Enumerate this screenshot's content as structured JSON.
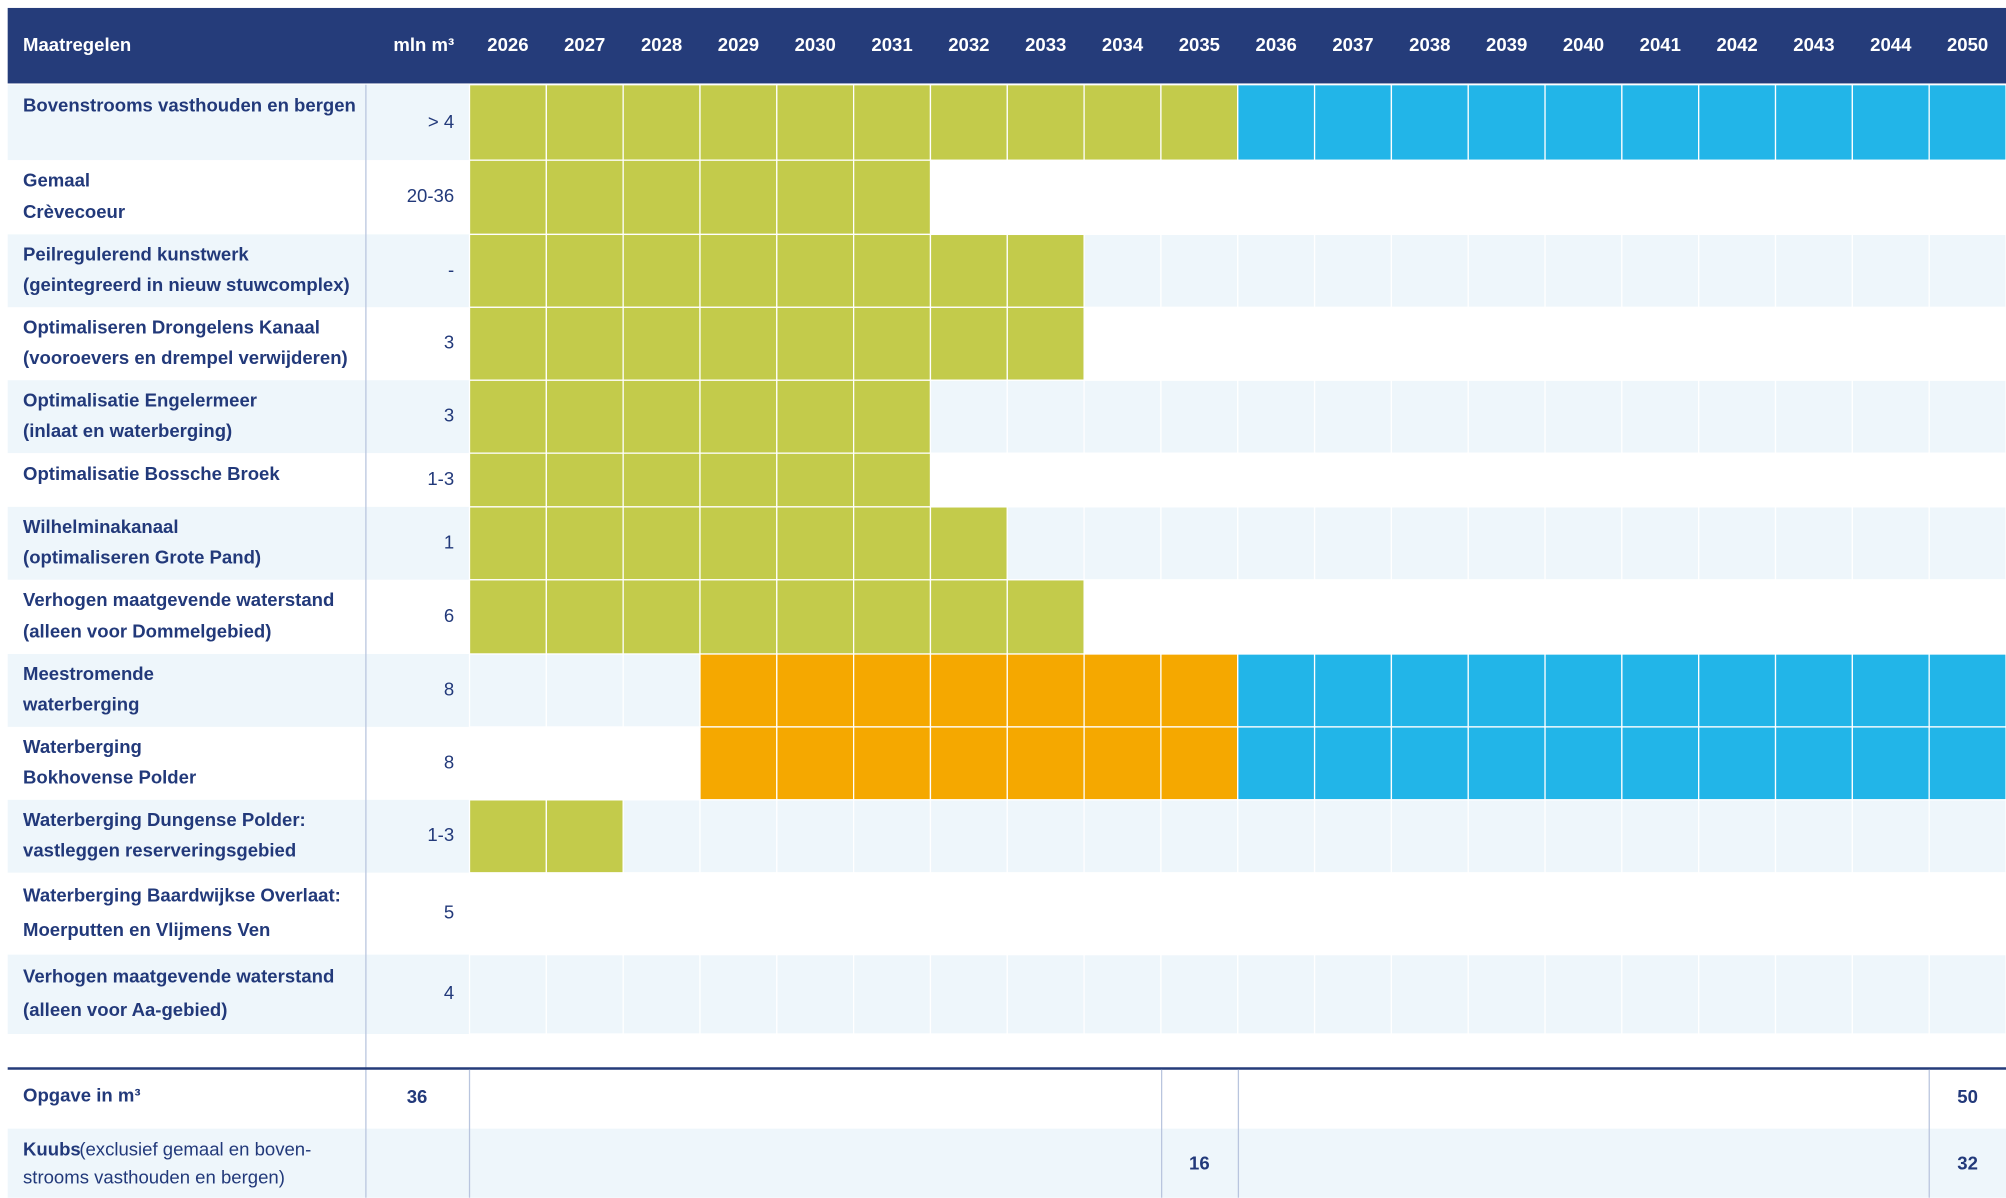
{
  "colors": {
    "green": "#c3cb4b",
    "orange": "#f5a800",
    "blue": "#22b5e8"
  },
  "header": {
    "label": "Maatregelen",
    "unit": "mln m³",
    "years": [
      "2026",
      "2027",
      "2028",
      "2029",
      "2030",
      "2031",
      "2032",
      "2033",
      "2034",
      "2035",
      "2036",
      "2037",
      "2038",
      "2039",
      "2040",
      "2041",
      "2042",
      "2043",
      "2044",
      "2050"
    ]
  },
  "rows": [
    {
      "label": [
        "Bovenstrooms vasthouden en bergen"
      ],
      "volume": "> 4",
      "cells": [
        "green",
        "green",
        "green",
        "green",
        "green",
        "green",
        "green",
        "green",
        "green",
        "green",
        "blue",
        "blue",
        "blue",
        "blue",
        "blue",
        "blue",
        "blue",
        "blue",
        "blue",
        "blue"
      ]
    },
    {
      "label": [
        "Gemaal",
        "Crèvecoeur"
      ],
      "volume": "20-36",
      "cells": [
        "green",
        "green",
        "green",
        "green",
        "green",
        "green",
        null,
        null,
        null,
        null,
        null,
        null,
        null,
        null,
        null,
        null,
        null,
        null,
        null,
        null
      ]
    },
    {
      "label": [
        "Peilregulerend kunstwerk",
        "(geintegreerd in nieuw stuwcomplex)"
      ],
      "volume": "-",
      "cells": [
        "green",
        "green",
        "green",
        "green",
        "green",
        "green",
        "green",
        "green",
        null,
        null,
        null,
        null,
        null,
        null,
        null,
        null,
        null,
        null,
        null,
        null
      ]
    },
    {
      "label": [
        "Optimaliseren Drongelens Kanaal",
        "(vooroevers en drempel verwijderen)"
      ],
      "volume": "3",
      "cells": [
        "green",
        "green",
        "green",
        "green",
        "green",
        "green",
        "green",
        "green",
        null,
        null,
        null,
        null,
        null,
        null,
        null,
        null,
        null,
        null,
        null,
        null
      ]
    },
    {
      "label": [
        "Optimalisatie Engelermeer",
        "(inlaat en waterberging)"
      ],
      "volume": "3",
      "cells": [
        "green",
        "green",
        "green",
        "green",
        "green",
        "green",
        null,
        null,
        null,
        null,
        null,
        null,
        null,
        null,
        null,
        null,
        null,
        null,
        null,
        null
      ]
    },
    {
      "label": [
        "Optimalisatie Bossche Broek"
      ],
      "volume": "1-3",
      "cells": [
        "green",
        "green",
        "green",
        "green",
        "green",
        "green",
        null,
        null,
        null,
        null,
        null,
        null,
        null,
        null,
        null,
        null,
        null,
        null,
        null,
        null
      ]
    },
    {
      "label": [
        "Wilhelminakanaal",
        "(optimaliseren Grote Pand)"
      ],
      "volume": "1",
      "cells": [
        "green",
        "green",
        "green",
        "green",
        "green",
        "green",
        "green",
        null,
        null,
        null,
        null,
        null,
        null,
        null,
        null,
        null,
        null,
        null,
        null,
        null
      ]
    },
    {
      "label": [
        "Verhogen maatgevende waterstand",
        "(alleen voor Dommelgebied)"
      ],
      "volume": "6",
      "cells": [
        "green",
        "green",
        "green",
        "green",
        "green",
        "green",
        "green",
        "green",
        null,
        null,
        null,
        null,
        null,
        null,
        null,
        null,
        null,
        null,
        null,
        null
      ]
    },
    {
      "label": [
        "Meestromende",
        "waterberging"
      ],
      "volume": "8",
      "cells": [
        null,
        null,
        null,
        "orange",
        "orange",
        "orange",
        "orange",
        "orange",
        "orange",
        "orange",
        "blue",
        "blue",
        "blue",
        "blue",
        "blue",
        "blue",
        "blue",
        "blue",
        "blue",
        "blue"
      ]
    },
    {
      "label": [
        "Waterberging",
        "Bokhovense Polder"
      ],
      "volume": "8",
      "cells": [
        null,
        null,
        null,
        "orange",
        "orange",
        "orange",
        "orange",
        "orange",
        "orange",
        "orange",
        "blue",
        "blue",
        "blue",
        "blue",
        "blue",
        "blue",
        "blue",
        "blue",
        "blue",
        "blue"
      ]
    },
    {
      "label": [
        "Waterberging Dungense Polder:",
        "vastleggen reserveringsgebied"
      ],
      "volume": "1-3",
      "cells": [
        "green",
        "green",
        null,
        null,
        null,
        null,
        null,
        null,
        null,
        null,
        null,
        null,
        null,
        null,
        null,
        null,
        null,
        null,
        null,
        null
      ]
    },
    {
      "label": [
        "Waterberging Baardwijkse Overlaat:",
        "Moerputten en Vlijmens Ven"
      ],
      "volume": "5",
      "cells": [
        null,
        null,
        null,
        null,
        null,
        null,
        null,
        null,
        null,
        null,
        null,
        null,
        null,
        null,
        null,
        null,
        null,
        null,
        null,
        null
      ]
    },
    {
      "label": [
        "Verhogen maatgevende waterstand",
        " (alleen voor Aa-gebied)"
      ],
      "volume": "4",
      "cells": [
        null,
        null,
        null,
        null,
        null,
        null,
        null,
        null,
        null,
        null,
        null,
        null,
        null,
        null,
        null,
        null,
        null,
        null,
        null,
        null
      ]
    }
  ],
  "footer": [
    {
      "label": "Opgave in m³",
      "total": "36",
      "cells": [
        null,
        null,
        null,
        null,
        null,
        null,
        null,
        null,
        null,
        null,
        null,
        null,
        null,
        null,
        null,
        null,
        null,
        null,
        null,
        "50"
      ]
    },
    {
      "bold": "Kuubs",
      "text": [
        "(exclusief gemaal en boven-",
        "strooms vasthouden en bergen)"
      ],
      "total": null,
      "cells": [
        null,
        null,
        null,
        null,
        null,
        null,
        null,
        null,
        null,
        "16",
        null,
        null,
        null,
        null,
        null,
        null,
        null,
        null,
        null,
        "32"
      ]
    }
  ]
}
